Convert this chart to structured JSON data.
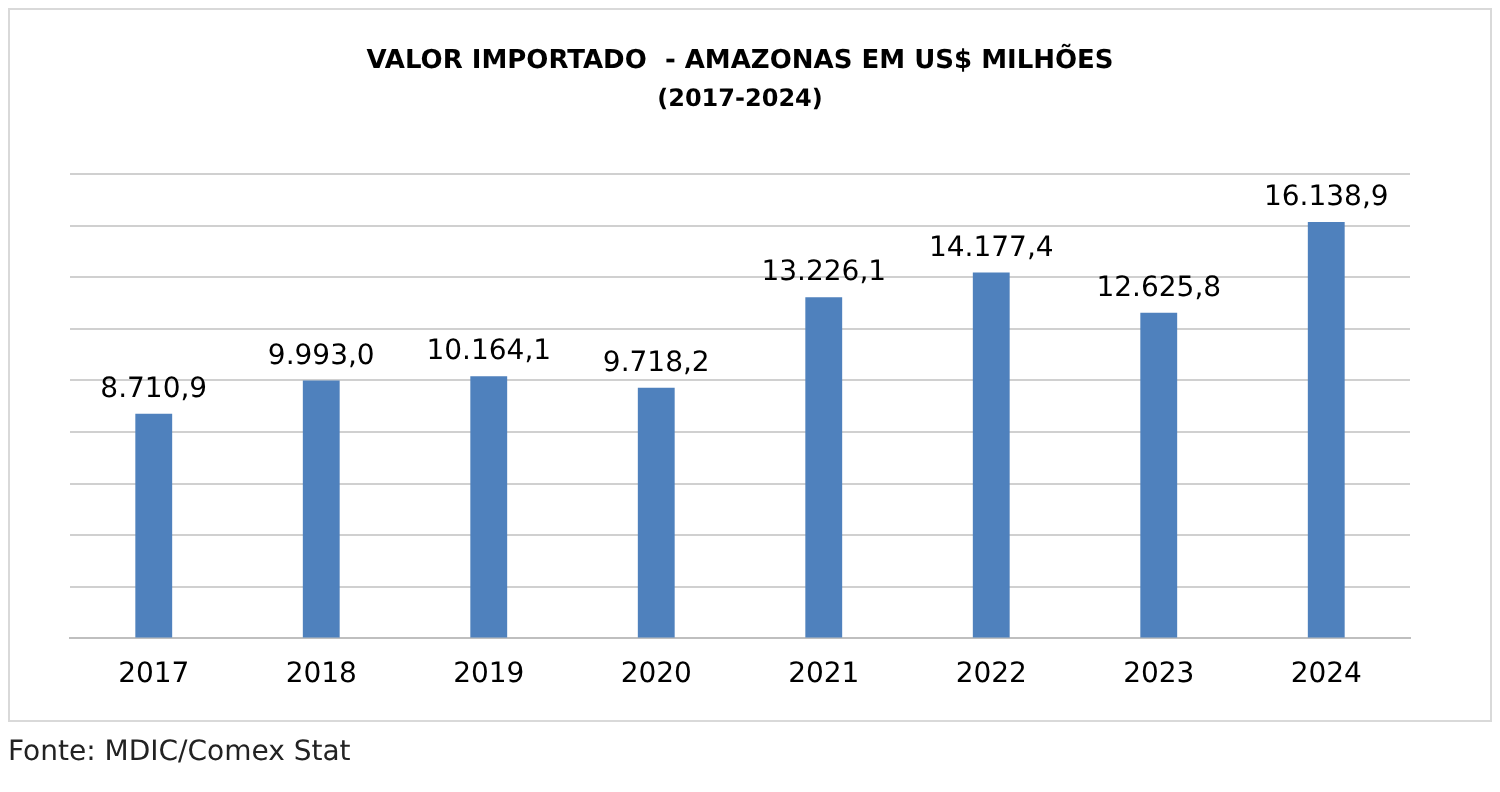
{
  "chart_data": {
    "type": "bar",
    "title": "VALOR IMPORTADO  - AMAZONAS EM US$ MILHÕES",
    "subtitle": "(2017-2024)",
    "categories": [
      "2017",
      "2018",
      "2019",
      "2020",
      "2021",
      "2022",
      "2023",
      "2024"
    ],
    "values": [
      8710.9,
      9993.0,
      10164.1,
      9718.2,
      13226.1,
      14177.4,
      12625.8,
      16138.9
    ],
    "value_labels": [
      "8.710,9",
      "9.993,0",
      "10.164,1",
      "9.718,2",
      "13.226,1",
      "14.177,4",
      "12.625,8",
      "16.138,9"
    ],
    "color": "#4f81bd",
    "ylim": [
      0,
      18000
    ],
    "yticks": [
      {
        "value": 0,
        "label": null
      },
      {
        "value": 2000,
        "label": null
      },
      {
        "value": 4000,
        "label": null
      },
      {
        "value": 6000,
        "label": null
      },
      {
        "value": 8000,
        "label": null
      },
      {
        "value": 10000,
        "label": null
      },
      {
        "value": 12000,
        "label": null
      },
      {
        "value": 14000,
        "label": null
      },
      {
        "value": 16000,
        "label": null
      },
      {
        "value": 18000,
        "label": null
      }
    ],
    "grid": "y",
    "tick_labels": "x",
    "legend": false,
    "annotations": [
      "Fonte: MDIC/Comex Stat"
    ]
  }
}
